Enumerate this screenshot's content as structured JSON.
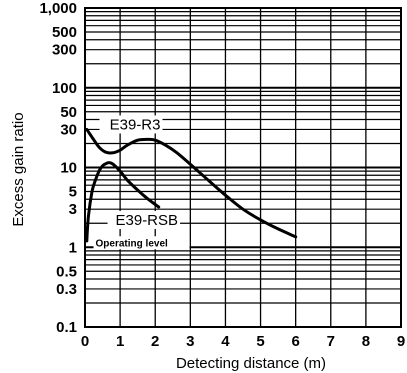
{
  "chart_data": {
    "type": "line",
    "title": "",
    "xlabel": "Detecting distance (m)",
    "ylabel": "Excess gain ratio",
    "xlim": [
      0,
      9
    ],
    "ylim": [
      0.1,
      1000
    ],
    "yscale": "log",
    "grid": true,
    "x_ticks": [
      "0",
      "1",
      "2",
      "3",
      "4",
      "5",
      "6",
      "7",
      "8",
      "9"
    ],
    "y_ticks": [
      {
        "value": 1000,
        "label": "1,000"
      },
      {
        "value": 500,
        "label": "500"
      },
      {
        "value": 300,
        "label": "300"
      },
      {
        "value": 100,
        "label": "100"
      },
      {
        "value": 50,
        "label": "50"
      },
      {
        "value": 30,
        "label": "30"
      },
      {
        "value": 10,
        "label": "10"
      },
      {
        "value": 5,
        "label": "5"
      },
      {
        "value": 3,
        "label": "3"
      },
      {
        "value": 1,
        "label": "1"
      },
      {
        "value": 0.5,
        "label": "0.5"
      },
      {
        "value": 0.3,
        "label": "0.3"
      },
      {
        "value": 0.1,
        "label": "0.1"
      }
    ],
    "series": [
      {
        "name": "E39-R3",
        "x": [
          0.05,
          0.2,
          0.4,
          0.6,
          0.8,
          1.0,
          1.2,
          1.5,
          1.8,
          2.0,
          2.3,
          2.6,
          3.0,
          3.5,
          4.0,
          4.5,
          5.0,
          5.5,
          6.0
        ],
        "y": [
          30,
          24,
          18,
          15.5,
          15.3,
          16.5,
          19,
          22,
          22.5,
          22,
          19,
          15.5,
          11,
          7,
          4.5,
          3,
          2.2,
          1.7,
          1.35
        ]
      },
      {
        "name": "E39-RSB",
        "x": [
          0.05,
          0.1,
          0.2,
          0.3,
          0.4,
          0.5,
          0.6,
          0.7,
          0.8,
          1.0,
          1.2,
          1.5,
          1.8,
          2.1
        ],
        "y": [
          1.2,
          2.5,
          5,
          7,
          9,
          10.5,
          11.2,
          11.5,
          11,
          9,
          7,
          5.2,
          4,
          3.2
        ]
      }
    ],
    "reference_line": {
      "label": "Operating level",
      "y": 1
    }
  }
}
